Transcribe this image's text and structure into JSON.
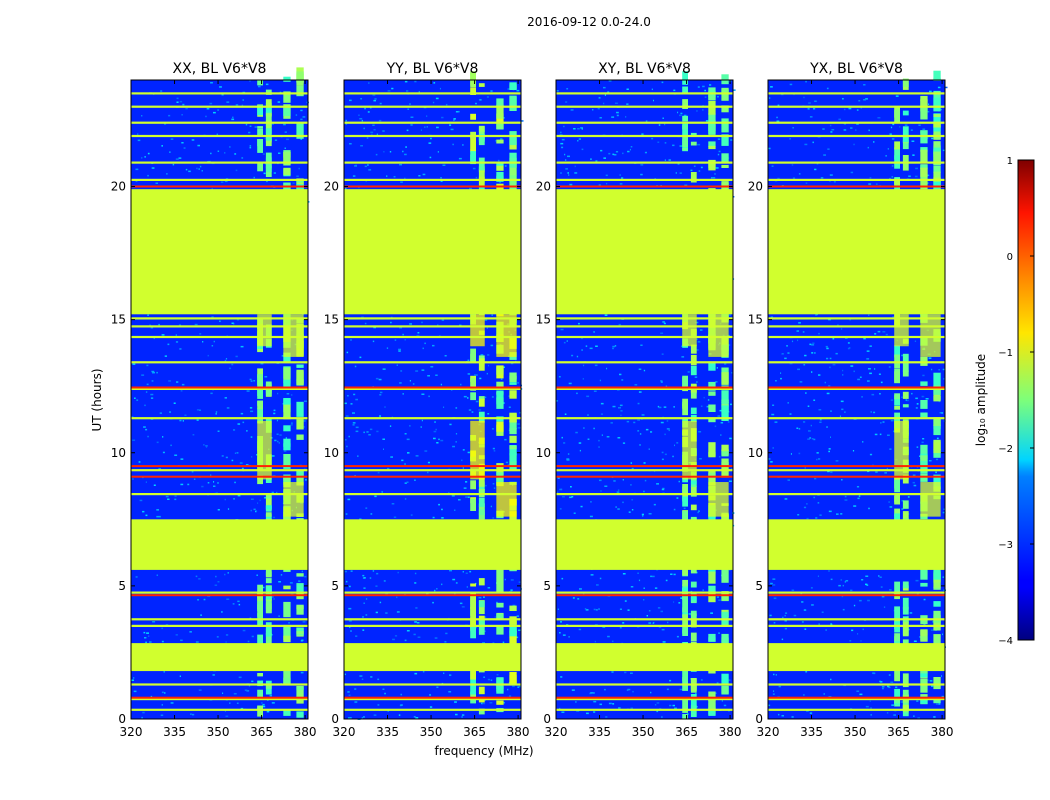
{
  "chart_data": {
    "type": "heatmap",
    "suptitle": "2016-09-12 0.0-24.0",
    "xlabel": "frequency (MHz)",
    "ylabel": "UT (hours)",
    "xlim": [
      320,
      381
    ],
    "ylim": [
      0,
      24
    ],
    "xticks": [
      320,
      335,
      350,
      365,
      380
    ],
    "yticks": [
      0,
      5,
      10,
      15,
      20
    ],
    "panels": [
      {
        "title": "XX, BL V6*V8",
        "rfi_strength": 0.55
      },
      {
        "title": "YY, BL V6*V8",
        "rfi_strength": 0.75
      },
      {
        "title": "XY, BL V6*V8",
        "rfi_strength": 0.55
      },
      {
        "title": "YX, BL V6*V8",
        "rfi_strength": 0.55
      }
    ],
    "colorbar": {
      "label": "log₁₀ amplitude",
      "range": [
        -4,
        1
      ],
      "ticks": [
        "1",
        "0",
        "−1",
        "−2",
        "−3",
        "−4"
      ],
      "colormap": "jet"
    },
    "flagged_value": -1.1,
    "background_value": -3.2,
    "flagged_time_bands": [
      [
        1.8,
        2.85
      ],
      [
        5.6,
        7.5
      ],
      [
        15.2,
        19.9
      ]
    ],
    "flagged_time_lines": [
      0.35,
      0.75,
      1.3,
      3.5,
      3.75,
      4.75,
      8.45,
      9.35,
      11.3,
      12.4,
      13.4,
      14.35,
      14.75,
      15.05,
      20.25,
      20.9,
      21.9,
      22.4,
      23.0,
      23.5
    ],
    "hot_time_lines": [
      0.8,
      4.65,
      9.1,
      9.5,
      12.45,
      20.0
    ],
    "rfi_freq_channels": [
      [
        363.5,
        365.5
      ],
      [
        366.5,
        368.5
      ],
      [
        372.5,
        375
      ],
      [
        377,
        379.5
      ]
    ]
  }
}
